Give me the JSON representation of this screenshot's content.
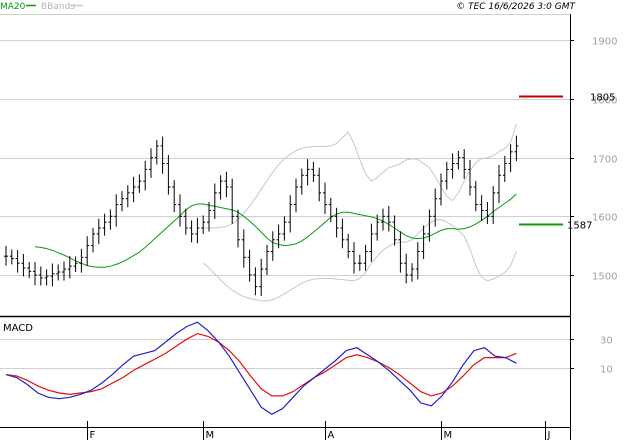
{
  "legend": {
    "ma_label": "MA20",
    "bb_label": "BBands"
  },
  "copyright": "© TEC 16/6/2026 3:0 GMT",
  "macd_label": "MACD",
  "colors": {
    "ma": "#0a9a0a",
    "bbands": "#c8c8c8",
    "macd": "#2020d0",
    "signal": "#e01010",
    "resistance": "#c00000",
    "support": "#0a9a0a",
    "price": "#000000",
    "grid": "#d0d0d0",
    "axis_text": "#a0a0a0"
  },
  "chart_data": {
    "type": "line",
    "price_panel": {
      "y_ticks": [
        1500,
        1600,
        1700,
        1800,
        1900
      ],
      "y_range": [
        1430,
        1945
      ],
      "month_labels": [
        {
          "label": "F",
          "index": 14
        },
        {
          "label": "M",
          "index": 34
        },
        {
          "label": "A",
          "index": 55
        },
        {
          "label": "M",
          "index": 75
        },
        {
          "label": "J",
          "index": 93
        }
      ],
      "closes": [
        1532,
        1528,
        1520,
        1512,
        1506,
        1500,
        1495,
        1498,
        1502,
        1505,
        1510,
        1515,
        1520,
        1530,
        1550,
        1570,
        1580,
        1590,
        1600,
        1620,
        1630,
        1640,
        1650,
        1660,
        1680,
        1700,
        1720,
        1690,
        1650,
        1620,
        1600,
        1580,
        1570,
        1580,
        1590,
        1610,
        1640,
        1660,
        1650,
        1600,
        1560,
        1530,
        1500,
        1480,
        1510,
        1540,
        1560,
        1570,
        1590,
        1620,
        1650,
        1670,
        1680,
        1670,
        1640,
        1620,
        1600,
        1580,
        1560,
        1540,
        1520,
        1520,
        1540,
        1570,
        1590,
        1600,
        1590,
        1560,
        1520,
        1500,
        1510,
        1540,
        1570,
        1600,
        1630,
        1660,
        1680,
        1690,
        1700,
        1680,
        1650,
        1620,
        1610,
        1600,
        1640,
        1670,
        1690,
        1710,
        1720
      ],
      "ma20": [
        1548,
        1547,
        1545,
        1542,
        1538,
        1534,
        1529,
        1524,
        1520,
        1516,
        1514,
        1513,
        1513,
        1515,
        1518,
        1522,
        1527,
        1533,
        1539,
        1547,
        1556,
        1565,
        1574,
        1583,
        1592,
        1601,
        1611,
        1618,
        1621,
        1621,
        1619,
        1617,
        1615,
        1613,
        1611,
        1607,
        1600,
        1592,
        1583,
        1573,
        1563,
        1555,
        1552,
        1550,
        1551,
        1553,
        1558,
        1565,
        1573,
        1581,
        1590,
        1598,
        1604,
        1607,
        1607,
        1605,
        1603,
        1601,
        1599,
        1596,
        1592,
        1586,
        1580,
        1573,
        1567,
        1563,
        1562,
        1563,
        1566,
        1571,
        1576,
        1579,
        1579,
        1578,
        1579,
        1582,
        1587,
        1593,
        1600,
        1608,
        1615,
        1622,
        1629,
        1638
      ],
      "bb_upper": [
        1580,
        1580,
        1580,
        1581,
        1583,
        1587,
        1594,
        1605,
        1617,
        1631,
        1646,
        1661,
        1675,
        1688,
        1698,
        1706,
        1712,
        1716,
        1718,
        1719,
        1719,
        1719,
        1720,
        1724,
        1734,
        1744,
        1724,
        1697,
        1672,
        1660,
        1666,
        1675,
        1683,
        1686,
        1690,
        1696,
        1698,
        1697,
        1690,
        1683,
        1668,
        1650,
        1634,
        1627,
        1640,
        1660,
        1678,
        1691,
        1699,
        1700,
        1703,
        1710,
        1716,
        1726,
        1758
      ],
      "bb_lower": [
        1520,
        1512,
        1502,
        1492,
        1482,
        1474,
        1468,
        1463,
        1460,
        1458,
        1456,
        1456,
        1458,
        1462,
        1468,
        1474,
        1480,
        1486,
        1490,
        1493,
        1494,
        1494,
        1494,
        1493,
        1492,
        1491,
        1490,
        1494,
        1504,
        1520,
        1532,
        1542,
        1549,
        1554,
        1556,
        1556,
        1560,
        1570,
        1580,
        1588,
        1594,
        1594,
        1590,
        1584,
        1576,
        1566,
        1544,
        1516,
        1496,
        1490,
        1493,
        1498,
        1504,
        1516,
        1540
      ],
      "resistance": {
        "value": 1805,
        "label": "1805"
      },
      "support": {
        "value": 1587,
        "label": "1587"
      }
    },
    "macd_panel": {
      "y_ticks": [
        10,
        30
      ],
      "y_range": [
        -32,
        45
      ],
      "macd": [
        5,
        3,
        -2,
        -8,
        -11,
        -12,
        -11,
        -9,
        -6,
        -1,
        5,
        12,
        18,
        20,
        22,
        28,
        34,
        39,
        42,
        36,
        28,
        18,
        6,
        -6,
        -18,
        -23,
        -19,
        -11,
        -3,
        3,
        9,
        15,
        22,
        24,
        19,
        14,
        8,
        1,
        -6,
        -15,
        -17,
        -10,
        0,
        12,
        22,
        24,
        18,
        17,
        13
      ],
      "signal": [
        5,
        4,
        1,
        -3,
        -6,
        -8,
        -9,
        -8,
        -7,
        -5,
        -1,
        3,
        8,
        12,
        16,
        20,
        25,
        30,
        34,
        32,
        28,
        22,
        14,
        4,
        -5,
        -10,
        -10,
        -7,
        -2,
        3,
        7,
        12,
        17,
        19,
        17,
        14,
        10,
        5,
        -1,
        -7,
        -10,
        -8,
        -3,
        4,
        12,
        17,
        17,
        17,
        20
      ]
    }
  }
}
